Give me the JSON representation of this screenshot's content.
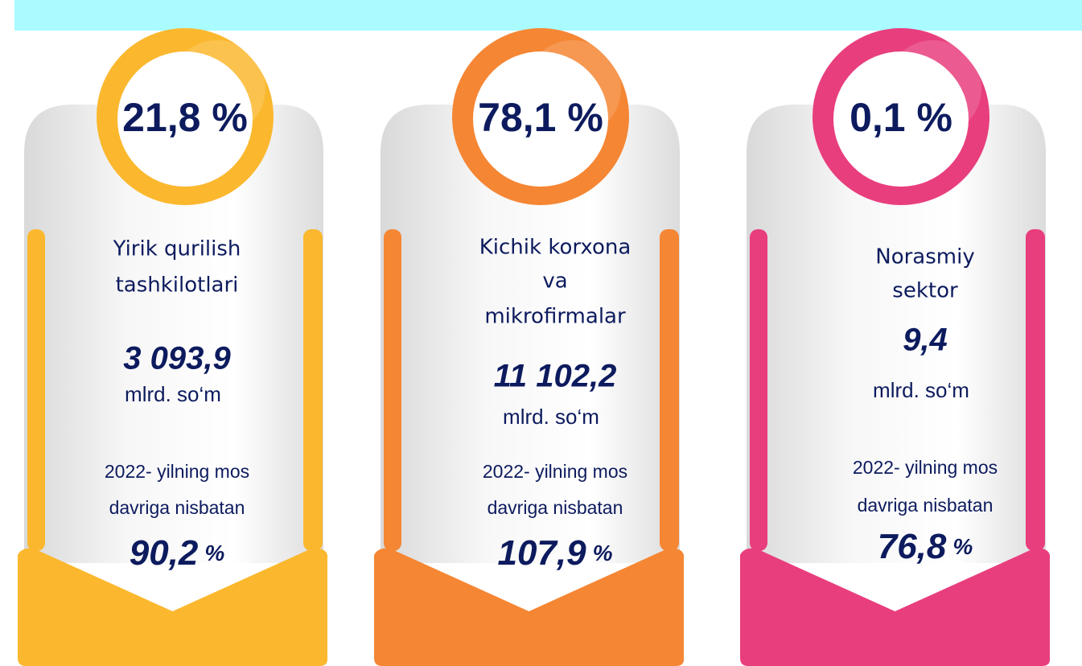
{
  "cards": [
    {
      "share": "21,8 %",
      "name": [
        "Yirik qurilish",
        "tashkilotlari"
      ],
      "value": "3 093,9",
      "unit": "mlrd. so‘m",
      "note": [
        "2022- yilning mos",
        "davriga nisbatan"
      ],
      "growth": "90,2",
      "growth_unit": "%"
    },
    {
      "share": "78,1 %",
      "name": [
        "Kichik korxona",
        "va",
        "mikrofirmalar"
      ],
      "value": "11 102,2",
      "unit": "mlrd. so‘m",
      "note": [
        "2022- yilning mos",
        "davriga nisbatan"
      ],
      "growth": "107,9",
      "growth_unit": "%"
    },
    {
      "share": "0,1 %",
      "name": [
        "Norasmiy",
        "sektor"
      ],
      "value": "9,4",
      "unit": "mlrd. so‘m",
      "note": [
        "2022- yilning mos",
        "davriga nisbatan"
      ],
      "growth": "76,8",
      "growth_unit": "%"
    }
  ]
}
